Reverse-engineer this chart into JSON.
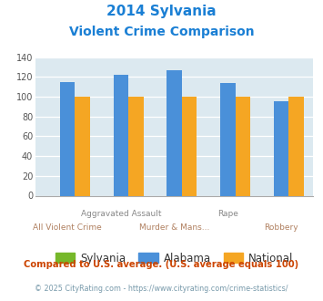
{
  "title_line1": "2014 Sylvania",
  "title_line2": "Violent Crime Comparison",
  "categories": [
    "All Violent Crime",
    "Aggravated Assault",
    "Murder & Mans...",
    "Rape",
    "Robbery"
  ],
  "sylvania": [
    0,
    0,
    0,
    0,
    0
  ],
  "alabama": [
    115,
    122,
    127,
    114,
    95
  ],
  "national": [
    100,
    100,
    100,
    100,
    100
  ],
  "color_sylvania": "#76b82a",
  "color_alabama": "#4a90d9",
  "color_national": "#f5a623",
  "ylim": [
    0,
    140
  ],
  "yticks": [
    0,
    20,
    40,
    60,
    80,
    100,
    120,
    140
  ],
  "bg_color": "#dce9f0",
  "title_color": "#1a7fd4",
  "top_xlabel_color": "#888888",
  "bot_xlabel_color": "#b08060",
  "footer1": "Compared to U.S. average. (U.S. average equals 100)",
  "footer2": "© 2025 CityRating.com - https://www.cityrating.com/crime-statistics/",
  "footer1_color": "#cc4400",
  "footer2_color": "#7799aa",
  "legend_labels": [
    "Sylvania",
    "Alabama",
    "National"
  ]
}
